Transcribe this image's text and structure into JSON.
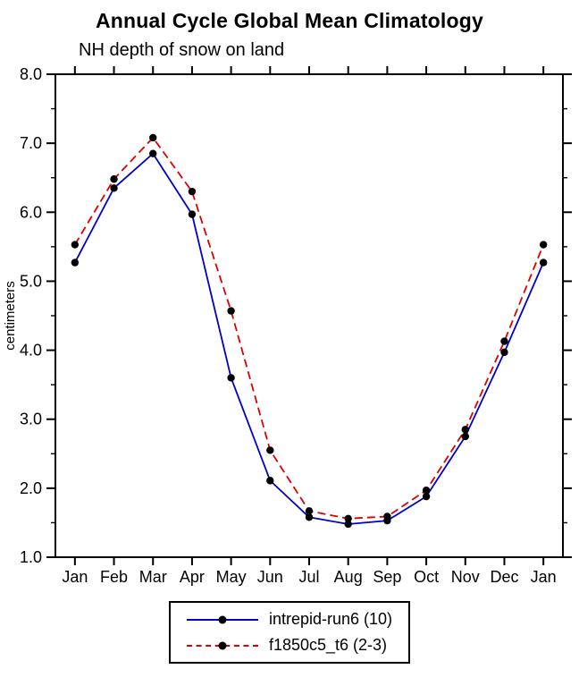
{
  "title": "Annual Cycle Global Mean Climatology",
  "subtitle": "NH depth of snow on land",
  "chart_data": {
    "type": "line",
    "categories": [
      "Jan",
      "Feb",
      "Mar",
      "Apr",
      "May",
      "Jun",
      "Jul",
      "Aug",
      "Sep",
      "Oct",
      "Nov",
      "Dec",
      "Jan"
    ],
    "ylabel": "centimeters",
    "ylim": [
      1.0,
      8.0
    ],
    "ytick_labels": [
      "1.0",
      "2.0",
      "3.0",
      "4.0",
      "5.0",
      "6.0",
      "7.0",
      "8.0"
    ],
    "ytick_major": [
      1.0,
      2.0,
      3.0,
      4.0,
      5.0,
      6.0,
      7.0,
      8.0
    ],
    "ytick_minor_step": 0.5,
    "grid": false,
    "legend_position": "bottom",
    "marker": {
      "shape": "filled-circle",
      "color": "#000000"
    },
    "series": [
      {
        "name": "intrepid-run6 (10)",
        "color": "#0000cc",
        "style": "solid",
        "values": [
          5.27,
          6.35,
          6.85,
          5.97,
          3.6,
          2.11,
          1.58,
          1.48,
          1.53,
          1.88,
          2.75,
          3.97,
          5.27
        ]
      },
      {
        "name": "f1850c5_t6 (2-3)",
        "color": "#dd0000",
        "style": "dashed",
        "values": [
          5.53,
          6.48,
          7.08,
          6.3,
          4.57,
          2.55,
          1.67,
          1.56,
          1.59,
          1.97,
          2.85,
          4.13,
          5.53
        ]
      }
    ]
  }
}
